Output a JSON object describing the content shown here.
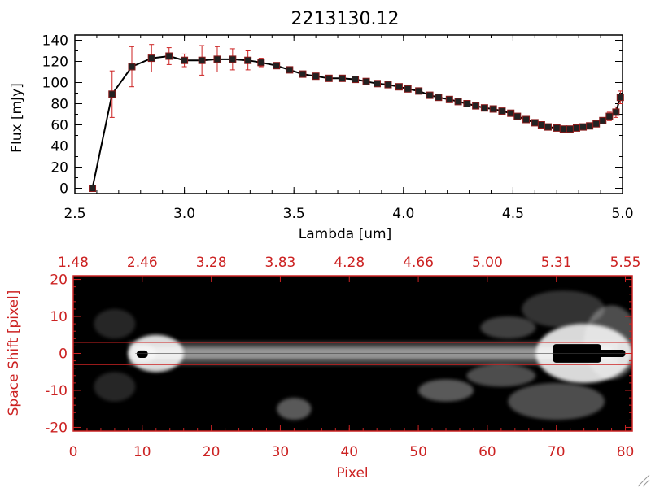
{
  "colors": {
    "axis": "#000000",
    "red": "#cc2222",
    "errorbar": "#cc2222",
    "marker_fill": "#222222",
    "image_bg": "#000000"
  },
  "chart_data": [
    {
      "type": "line",
      "title": "2213130.12",
      "xlabel": "Lambda [um]",
      "ylabel": "Flux [mJy]",
      "xlim": [
        2.5,
        5.0
      ],
      "ylim": [
        -5,
        145
      ],
      "xticks": [
        "2.5",
        "3.0",
        "3.5",
        "4.0",
        "4.5",
        "5.0"
      ],
      "xtick_values": [
        2.5,
        3.0,
        3.5,
        4.0,
        4.5,
        5.0
      ],
      "yticks": [
        "0",
        "20",
        "40",
        "60",
        "80",
        "100",
        "120",
        "140"
      ],
      "ytick_values": [
        0,
        20,
        40,
        60,
        80,
        100,
        120,
        140
      ],
      "series": [
        {
          "x": [
            2.58,
            2.67,
            2.76,
            2.85,
            2.93,
            3.0,
            3.08,
            3.15,
            3.22,
            3.29,
            3.35,
            3.42,
            3.48,
            3.54,
            3.6,
            3.66,
            3.72,
            3.78,
            3.83,
            3.88,
            3.93,
            3.98,
            4.02,
            4.07,
            4.12,
            4.16,
            4.21,
            4.25,
            4.29,
            4.33,
            4.37,
            4.41,
            4.45,
            4.49,
            4.52,
            4.56,
            4.6,
            4.63,
            4.66,
            4.7,
            4.73,
            4.76,
            4.79,
            4.82,
            4.85,
            4.88,
            4.91,
            4.94,
            4.97,
            4.99
          ],
          "y": [
            0,
            89,
            115,
            123,
            125,
            121,
            121,
            122,
            122,
            121,
            119,
            116,
            112,
            108,
            106,
            104,
            104,
            103,
            101,
            99,
            98,
            96,
            94,
            92,
            88,
            86,
            84,
            82,
            80,
            78,
            76,
            75,
            73,
            71,
            68,
            65,
            62,
            60,
            58,
            57,
            56,
            56,
            57,
            58,
            59,
            61,
            64,
            68,
            72,
            86
          ],
          "err": [
            0,
            22,
            19,
            13,
            8,
            6,
            14,
            12,
            10,
            9,
            4,
            2,
            1,
            1,
            1,
            1,
            1,
            1,
            1,
            1,
            1,
            1,
            1,
            1,
            1,
            1,
            1,
            1,
            1,
            1,
            1,
            1,
            1,
            1,
            1,
            1,
            1,
            1,
            1,
            1,
            1,
            1,
            1,
            1,
            1,
            1,
            2,
            4,
            5,
            6
          ]
        }
      ]
    },
    {
      "type": "heatmap",
      "xlabel": "Pixel",
      "ylabel": "Space Shift [pixel]",
      "xlim": [
        0,
        81
      ],
      "ylim": [
        -21,
        21
      ],
      "xticks": [
        "0",
        "10",
        "20",
        "30",
        "40",
        "50",
        "60",
        "70",
        "80"
      ],
      "xtick_values": [
        0,
        10,
        20,
        30,
        40,
        50,
        60,
        70,
        80
      ],
      "yticks": [
        "-20",
        "-10",
        "0",
        "10",
        "20"
      ],
      "ytick_values": [
        -20,
        -10,
        0,
        10,
        20
      ],
      "top_ticks": [
        "1.48",
        "2.46",
        "3.28",
        "3.83",
        "4.28",
        "4.66",
        "5.00",
        "5.31",
        "5.55"
      ],
      "top_tick_positions": [
        0,
        10,
        20,
        30,
        40,
        50,
        60,
        70,
        80
      ],
      "hlines": [
        3,
        -3
      ],
      "blobs": [
        {
          "x": 12,
          "y": 0,
          "sx": 4,
          "sy": 5,
          "a": 0.85
        },
        {
          "x": 10,
          "y": 0,
          "sx": 2,
          "sy": 2.5,
          "a": 0.4
        },
        {
          "x": 74,
          "y": 0,
          "sx": 7,
          "sy": 8,
          "a": 0.85
        },
        {
          "x": 78,
          "y": 3,
          "sx": 4,
          "sy": 10,
          "a": 0.3
        },
        {
          "x": 54,
          "y": -10,
          "sx": 4,
          "sy": 3,
          "a": 0.35
        },
        {
          "x": 62,
          "y": -6,
          "sx": 5,
          "sy": 3,
          "a": 0.3
        },
        {
          "x": 63,
          "y": 7,
          "sx": 4,
          "sy": 3,
          "a": 0.25
        },
        {
          "x": 70,
          "y": -13,
          "sx": 7,
          "sy": 5,
          "a": 0.3
        },
        {
          "x": 32,
          "y": -15,
          "sx": 2.5,
          "sy": 3,
          "a": 0.35
        },
        {
          "x": 6,
          "y": 8,
          "sx": 3,
          "sy": 4,
          "a": 0.15
        },
        {
          "x": 6,
          "y": -9,
          "sx": 3,
          "sy": 4,
          "a": 0.15
        },
        {
          "x": 71,
          "y": 12,
          "sx": 6,
          "sy": 5,
          "a": 0.2
        }
      ],
      "saturated": [
        {
          "x": 10,
          "y": -0.2,
          "w": 1.6,
          "h": 2.0
        },
        {
          "x": 73,
          "y": 0,
          "w": 7,
          "h": 5
        },
        {
          "x": 78,
          "y": 0,
          "w": 4,
          "h": 2
        }
      ]
    }
  ]
}
